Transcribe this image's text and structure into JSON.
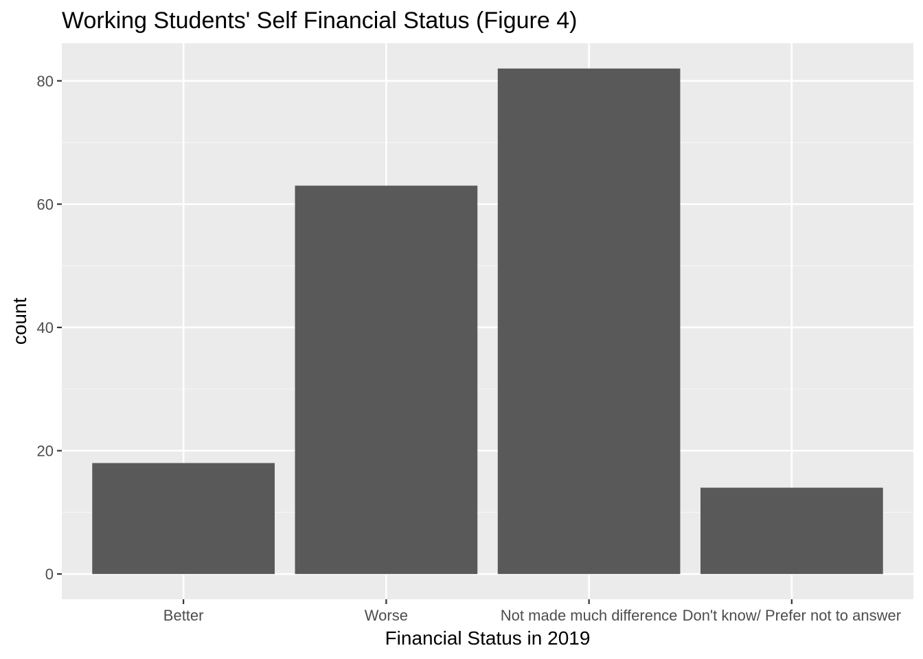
{
  "chart_data": {
    "type": "bar",
    "title": "Working Students' Self Financial Status (Figure 4)",
    "xlabel": "Financial Status in 2019",
    "ylabel": "count",
    "categories": [
      "Better",
      "Worse",
      "Not made much difference",
      "Don't know/ Prefer not to answer"
    ],
    "values": [
      18,
      63,
      82,
      14
    ],
    "ylim": [
      -4.1,
      86.1
    ],
    "yticks": [
      0,
      20,
      40,
      60,
      80
    ],
    "ytick_labels": [
      "0",
      "20",
      "40",
      "60",
      "80"
    ],
    "grid": true,
    "legend": "none",
    "colors": {
      "bar": "#595959",
      "panel_background": "#ebebeb",
      "grid_major": "#ffffff",
      "grid_minor": "#f5f5f5",
      "tick_text": "#4d4d4d",
      "tick_mark": "#333333"
    }
  }
}
